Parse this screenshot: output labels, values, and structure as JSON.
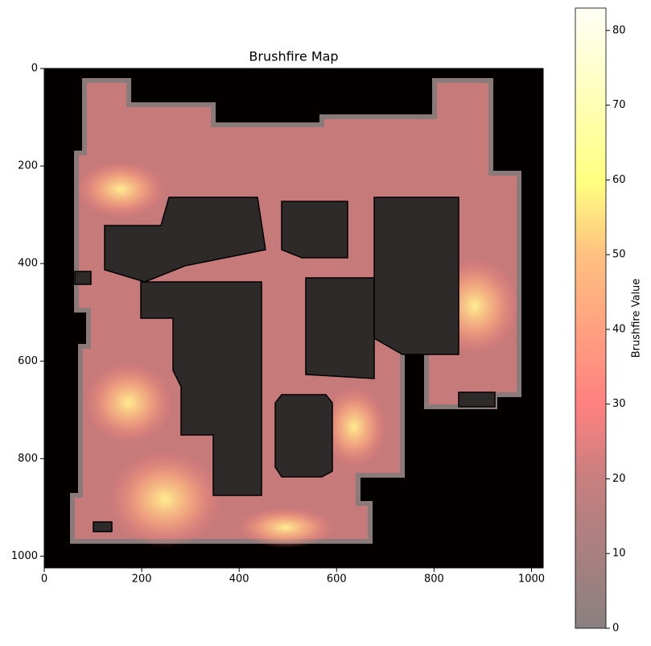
{
  "chart_data": {
    "type": "heatmap",
    "title": "Brushfire Map",
    "xlim": [
      0,
      1024
    ],
    "ylim": [
      1024,
      0
    ],
    "xticks": [
      0,
      200,
      400,
      600,
      800,
      1000
    ],
    "yticks": [
      0,
      200,
      400,
      600,
      800,
      1000
    ],
    "colormap": "hot",
    "colorbar": {
      "label": "Brushfire Value",
      "lim": [
        0,
        83
      ],
      "ticks": [
        0,
        10,
        20,
        30,
        40,
        50,
        60,
        70,
        80
      ]
    }
  }
}
